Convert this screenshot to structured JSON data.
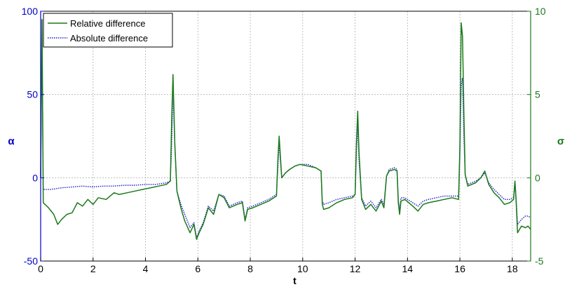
{
  "chart_data": {
    "type": "line",
    "title": "",
    "xlabel": "t",
    "ylabel": "α",
    "y2label": "σ",
    "xlim": [
      0,
      18.7
    ],
    "ylim": [
      -50,
      100
    ],
    "y2lim": [
      -5,
      10
    ],
    "xticks": [
      "0",
      "2",
      "4",
      "6",
      "8",
      "10",
      "12",
      "14",
      "16",
      "18"
    ],
    "yticks": [
      "-50",
      "0",
      "50",
      "100"
    ],
    "y2ticks": [
      "-5",
      "0",
      "5",
      "10"
    ],
    "grid": true,
    "legend_position": "top-left",
    "colors": {
      "relative": "#1a7a1a",
      "absolute": "#1c1cc8",
      "left_axis": "#0000c8",
      "right_axis": "#1a7a1a"
    },
    "series": [
      {
        "name": "Relative difference",
        "axis": "right",
        "style": "solid",
        "x": [
          0,
          0.05,
          0.1,
          0.3,
          0.5,
          0.65,
          0.8,
          1.0,
          1.2,
          1.4,
          1.6,
          1.8,
          2.0,
          2.2,
          2.5,
          2.8,
          3.0,
          3.3,
          3.6,
          3.9,
          4.2,
          4.5,
          4.8,
          4.95,
          5.0,
          5.05,
          5.12,
          5.2,
          5.35,
          5.5,
          5.7,
          5.85,
          5.95,
          6.05,
          6.2,
          6.4,
          6.6,
          6.8,
          7.0,
          7.2,
          7.5,
          7.7,
          7.8,
          7.9,
          8.1,
          8.4,
          8.7,
          9.0,
          9.05,
          9.1,
          9.15,
          9.2,
          9.35,
          9.5,
          9.7,
          9.9,
          10.2,
          10.5,
          10.7,
          10.75,
          10.8,
          11.0,
          11.3,
          11.6,
          11.9,
          12.0,
          12.05,
          12.1,
          12.15,
          12.25,
          12.4,
          12.6,
          12.8,
          13.0,
          13.1,
          13.2,
          13.3,
          13.5,
          13.6,
          13.65,
          13.7,
          13.75,
          13.9,
          14.2,
          14.4,
          14.6,
          14.8,
          15.1,
          15.4,
          15.7,
          15.95,
          16.0,
          16.05,
          16.1,
          16.15,
          16.2,
          16.3,
          16.45,
          16.6,
          16.8,
          16.95,
          17.1,
          17.3,
          17.5,
          17.7,
          17.9,
          18.05,
          18.1,
          18.15,
          18.2,
          18.35,
          18.5,
          18.6,
          18.7
        ],
        "values": [
          0.0,
          9.5,
          -1.5,
          -1.8,
          -2.2,
          -2.8,
          -2.5,
          -2.2,
          -2.1,
          -1.5,
          -1.7,
          -1.3,
          -1.6,
          -1.2,
          -1.3,
          -0.9,
          -1.0,
          -0.9,
          -0.8,
          -0.7,
          -0.6,
          -0.5,
          -0.4,
          -0.2,
          3.5,
          6.2,
          2.0,
          -0.8,
          -1.8,
          -2.6,
          -3.3,
          -2.8,
          -3.7,
          -3.3,
          -2.8,
          -1.8,
          -2.2,
          -1.0,
          -1.2,
          -1.8,
          -1.6,
          -1.5,
          -2.6,
          -1.9,
          -1.8,
          -1.6,
          -1.4,
          -1.1,
          1.0,
          2.5,
          1.3,
          0.0,
          0.3,
          0.5,
          0.7,
          0.8,
          0.7,
          0.6,
          0.4,
          -1.6,
          -1.9,
          -1.8,
          -1.5,
          -1.3,
          -1.2,
          -1.0,
          2.0,
          4.0,
          1.5,
          -1.3,
          -1.9,
          -1.6,
          -2.0,
          -1.4,
          -1.8,
          0.1,
          0.4,
          0.5,
          0.4,
          -1.5,
          -2.2,
          -1.4,
          -1.3,
          -1.7,
          -2.0,
          -1.6,
          -1.5,
          -1.4,
          -1.3,
          -1.2,
          -1.3,
          2.0,
          9.3,
          8.5,
          4.0,
          0.2,
          -0.5,
          -0.4,
          -0.3,
          0.0,
          0.4,
          -0.4,
          -0.9,
          -1.2,
          -1.6,
          -1.5,
          -1.3,
          -0.2,
          -1.5,
          -3.3,
          -2.9,
          -3.0,
          -2.9,
          -3.1
        ]
      },
      {
        "name": "Absolute difference",
        "axis": "left",
        "style": "dotted",
        "x": [
          0,
          0.05,
          0.1,
          0.4,
          0.8,
          1.2,
          1.6,
          2.0,
          2.4,
          2.8,
          3.2,
          3.6,
          4.0,
          4.4,
          4.8,
          4.95,
          5.0,
          5.05,
          5.12,
          5.2,
          5.35,
          5.5,
          5.7,
          5.85,
          5.95,
          6.05,
          6.2,
          6.4,
          6.6,
          6.8,
          7.0,
          7.2,
          7.5,
          7.7,
          7.8,
          7.9,
          8.1,
          8.4,
          8.7,
          9.0,
          9.05,
          9.1,
          9.15,
          9.2,
          9.35,
          9.5,
          9.7,
          9.9,
          10.2,
          10.5,
          10.7,
          10.75,
          10.8,
          11.0,
          11.3,
          11.6,
          11.9,
          12.0,
          12.05,
          12.1,
          12.15,
          12.25,
          12.4,
          12.6,
          12.8,
          13.0,
          13.1,
          13.2,
          13.3,
          13.5,
          13.6,
          13.65,
          13.7,
          13.75,
          13.9,
          14.2,
          14.4,
          14.6,
          14.8,
          15.1,
          15.4,
          15.7,
          15.95,
          16.0,
          16.05,
          16.1,
          16.15,
          16.2,
          16.3,
          16.45,
          16.6,
          16.8,
          16.95,
          17.1,
          17.3,
          17.5,
          17.7,
          17.9,
          18.05,
          18.1,
          18.15,
          18.2,
          18.35,
          18.5,
          18.6,
          18.7
        ],
        "values": [
          0,
          95,
          -7,
          -7,
          -6,
          -5.5,
          -5,
          -5.5,
          -5,
          -5,
          -4.5,
          -4.5,
          -4,
          -4,
          -3,
          -2,
          20,
          55,
          20,
          -8,
          -16,
          -22,
          -30,
          -27,
          -36,
          -32,
          -27,
          -17,
          -20,
          -10,
          -11,
          -17,
          -15,
          -14,
          -25,
          -18,
          -17,
          -15,
          -13,
          -10,
          5,
          22,
          10,
          0,
          3,
          5,
          7,
          8,
          8,
          6,
          4,
          -14,
          -16,
          -15,
          -13,
          -12,
          -11,
          -10,
          14,
          33,
          10,
          -12,
          -17,
          -14,
          -18,
          -13,
          -16,
          1,
          5,
          6,
          5,
          -13,
          -20,
          -12,
          -12,
          -15,
          -17,
          -14,
          -13,
          -12,
          -11,
          -11,
          -11,
          13,
          55,
          60,
          25,
          2,
          -4,
          -3,
          -2,
          0,
          3,
          -3,
          -7,
          -10,
          -13,
          -13,
          -12,
          -2,
          -13,
          -28,
          -25,
          -23,
          -23,
          -24
        ]
      }
    ]
  }
}
